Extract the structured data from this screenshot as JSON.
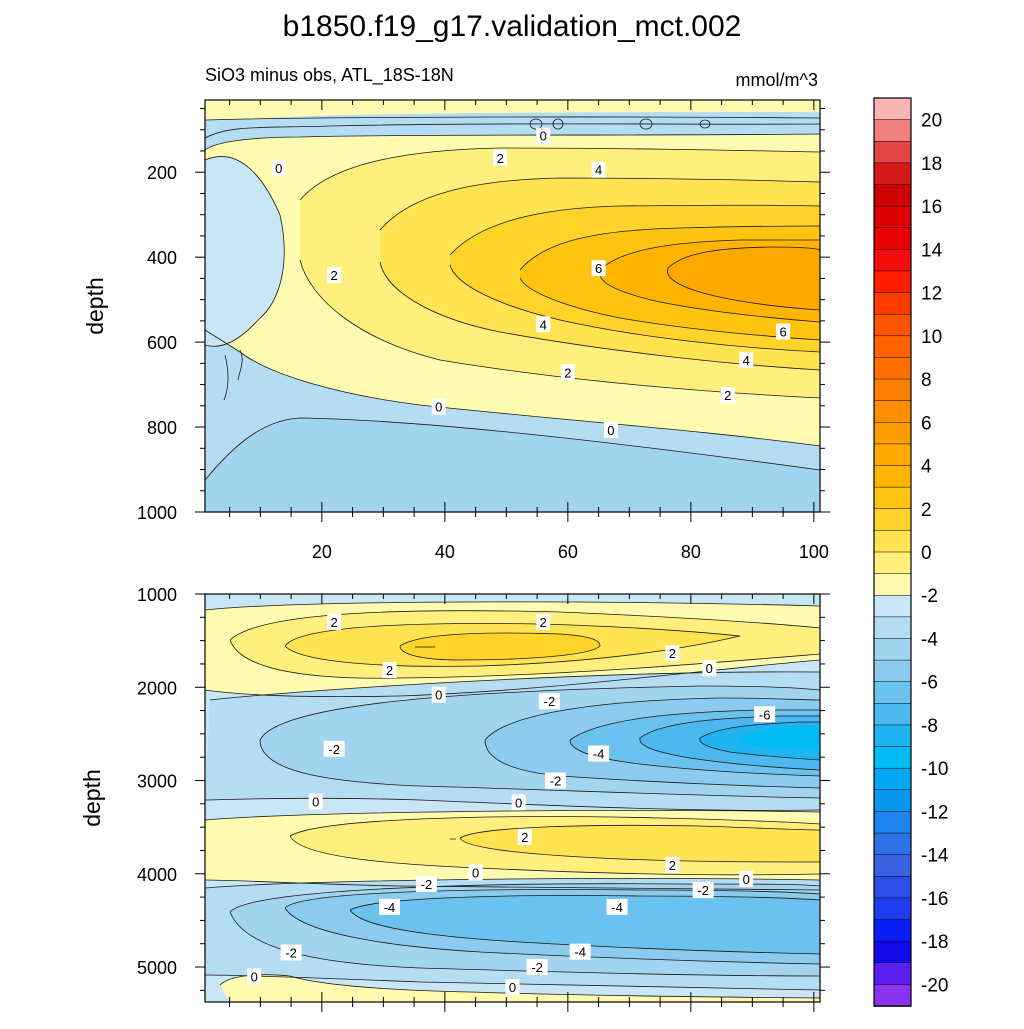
{
  "chart_data": [
    {
      "type": "contour",
      "panel": "upper",
      "title": "b1850.f19_g17.validation_mct.002",
      "subtitle_left": "SiO3 minus obs, ATL_18S-18N",
      "subtitle_right": "mmol/m^3",
      "ylabel": "depth",
      "xlabel": "",
      "ylim": [
        1000,
        30
      ],
      "xlim": [
        1,
        101
      ],
      "x_ticks": [
        20,
        40,
        60,
        80,
        100
      ],
      "y_ticks": [
        200,
        400,
        600,
        800,
        1000
      ],
      "contour_labels": [
        {
          "text": "0",
          "x": 56,
          "y": 114
        },
        {
          "text": "2",
          "x": 49,
          "y": 166
        },
        {
          "text": "0",
          "x": 13,
          "y": 190
        },
        {
          "text": "4",
          "x": 65,
          "y": 194
        },
        {
          "text": "6",
          "x": 65,
          "y": 426
        },
        {
          "text": "2",
          "x": 22,
          "y": 442
        },
        {
          "text": "4",
          "x": 56,
          "y": 558
        },
        {
          "text": "6",
          "x": 95,
          "y": 575
        },
        {
          "text": "4",
          "x": 89,
          "y": 642
        },
        {
          "text": "2",
          "x": 60,
          "y": 671
        },
        {
          "text": "2",
          "x": 86,
          "y": 725
        },
        {
          "text": "0",
          "x": 39,
          "y": 752
        },
        {
          "text": "0",
          "x": 67,
          "y": 807
        }
      ]
    },
    {
      "type": "contour",
      "panel": "lower",
      "ylabel": "depth",
      "ylim": [
        5375,
        1000
      ],
      "xlim": [
        1,
        101
      ],
      "y_ticks": [
        1000,
        2000,
        3000,
        4000,
        5000
      ],
      "contour_labels": [
        {
          "text": "2",
          "x": 22,
          "y": 1300
        },
        {
          "text": "2",
          "x": 56,
          "y": 1300
        },
        {
          "text": "2",
          "x": 77,
          "y": 1635
        },
        {
          "text": "0",
          "x": 83,
          "y": 1795
        },
        {
          "text": "2",
          "x": 31,
          "y": 1815
        },
        {
          "text": "0",
          "x": 39,
          "y": 2080
        },
        {
          "text": "-2",
          "x": 57,
          "y": 2150
        },
        {
          "text": "-6",
          "x": 92,
          "y": 2290
        },
        {
          "text": "-2",
          "x": 22,
          "y": 2660
        },
        {
          "text": "-4",
          "x": 65,
          "y": 2710
        },
        {
          "text": "-2",
          "x": 58,
          "y": 3000
        },
        {
          "text": "0",
          "x": 19,
          "y": 3225
        },
        {
          "text": "0",
          "x": 52,
          "y": 3235
        },
        {
          "text": "2",
          "x": 53,
          "y": 3605
        },
        {
          "text": "2",
          "x": 77,
          "y": 3905
        },
        {
          "text": "0",
          "x": 45,
          "y": 3985
        },
        {
          "text": "0",
          "x": 89,
          "y": 4055
        },
        {
          "text": "-2",
          "x": 37,
          "y": 4110
        },
        {
          "text": "-2",
          "x": 82,
          "y": 4175
        },
        {
          "text": "-4",
          "x": 31,
          "y": 4355
        },
        {
          "text": "-4",
          "x": 68,
          "y": 4355
        },
        {
          "text": "-4",
          "x": 62,
          "y": 4835
        },
        {
          "text": "-2",
          "x": 15,
          "y": 4845
        },
        {
          "text": "-2",
          "x": 55,
          "y": 5000
        },
        {
          "text": "0",
          "x": 9,
          "y": 5100
        },
        {
          "text": "0",
          "x": 51,
          "y": 5215
        }
      ]
    }
  ],
  "colorbar": {
    "levels": [
      20,
      18,
      16,
      14,
      12,
      10,
      8,
      6,
      4,
      2,
      0,
      -2,
      -4,
      -6,
      -8,
      -10,
      -12,
      -14,
      -16,
      -18,
      -20
    ],
    "labels": [
      "20",
      "18",
      "16",
      "14",
      "12",
      "10",
      "8",
      "6",
      "4",
      "2",
      "0",
      "-2",
      "-4",
      "-6",
      "-8",
      "-10",
      "-12",
      "-14",
      "-16",
      "-18",
      "-20"
    ],
    "colors": [
      "#fbb5b5",
      "#f08080",
      "#e14545",
      "#d61a1a",
      "#cf0000",
      "#dc0000",
      "#e90000",
      "#f50c0c",
      "#ff1e00",
      "#ff3c00",
      "#ff5500",
      "#ff6400",
      "#ff7000",
      "#ff7f00",
      "#ff8f00",
      "#ff9c00",
      "#ffa800",
      "#ffb400",
      "#ffc410",
      "#ffd42a",
      "#ffe350",
      "#fff07e",
      "#fffbb0",
      "#c8e6f5",
      "#b4dcf2",
      "#a2d4ef",
      "#8ccbee",
      "#6cc2ee",
      "#4cb8ee",
      "#1fb4f0",
      "#00bcf5",
      "#00a8f5",
      "#0b96f0",
      "#1f85ec",
      "#2c72e6",
      "#3a62e0",
      "#2f4de8",
      "#1f3cf0",
      "#0a1ef5",
      "#1409e8",
      "#5a1eee",
      "#8a33ee"
    ]
  }
}
